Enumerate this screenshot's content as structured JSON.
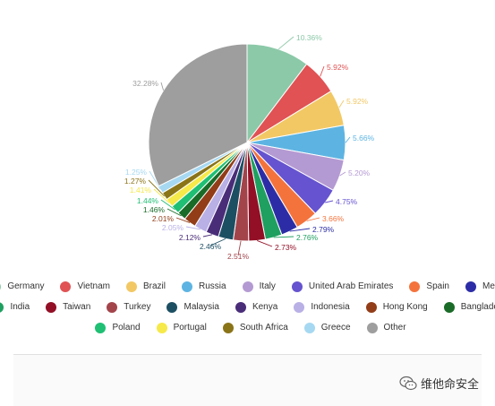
{
  "chart_data": {
    "type": "pie",
    "title": "",
    "slices": [
      {
        "label": "Germany",
        "value": 10.36,
        "color": "#8cc9a8",
        "label_text": "10.36%"
      },
      {
        "label": "Vietnam",
        "value": 5.92,
        "color": "#e05254",
        "label_text": "5.92%"
      },
      {
        "label": "Brazil",
        "value": 5.92,
        "color": "#f2c865",
        "label_text": "5.92%"
      },
      {
        "label": "Russia",
        "value": 5.66,
        "color": "#5db4e2",
        "label_text": "5.66%"
      },
      {
        "label": "Italy",
        "value": 5.2,
        "color": "#b49ad2",
        "label_text": "5.20%"
      },
      {
        "label": "United Arab Emirates",
        "value": 4.75,
        "color": "#6553cf",
        "label_text": "4.75%"
      },
      {
        "label": "Spain",
        "value": 3.66,
        "color": "#f4733d",
        "label_text": "3.66%"
      },
      {
        "label": "Mexico",
        "value": 2.79,
        "color": "#2c2da6",
        "label_text": "2.79%"
      },
      {
        "label": "India",
        "value": 2.76,
        "color": "#1fa060",
        "label_text": "2.76%"
      },
      {
        "label": "Taiwan",
        "value": 2.73,
        "color": "#920f25",
        "label_text": "2.73%"
      },
      {
        "label": "Turkey",
        "value": 2.51,
        "color": "#a3444b",
        "label_text": "2.51%"
      },
      {
        "label": "Malaysia",
        "value": 2.46,
        "color": "#1d4f63",
        "label_text": "2.46%"
      },
      {
        "label": "Kenya",
        "value": 2.12,
        "color": "#4a2d79",
        "label_text": "2.12%"
      },
      {
        "label": "Indonesia",
        "value": 2.05,
        "color": "#b9b0e6",
        "label_text": "2.05%"
      },
      {
        "label": "Hong Kong",
        "value": 2.01,
        "color": "#923d18",
        "label_text": "2.01%"
      },
      {
        "label": "Bangladesh",
        "value": 1.46,
        "color": "#1a6b27",
        "label_text": "1.46%"
      },
      {
        "label": "Poland",
        "value": 1.44,
        "color": "#1fbf74",
        "label_text": "1.44%"
      },
      {
        "label": "Portugal",
        "value": 1.41,
        "color": "#f6e94a",
        "label_text": "1.41%"
      },
      {
        "label": "South Africa",
        "value": 1.27,
        "color": "#8a7418",
        "label_text": "1.27%"
      },
      {
        "label": "Greece",
        "value": 1.25,
        "color": "#a6d8f2",
        "label_text": "1.25%"
      },
      {
        "label": "Other",
        "value": 32.28,
        "color": "#9e9e9e",
        "label_text": "32.28%"
      }
    ],
    "legend_position": "bottom"
  },
  "watermark": {
    "text": "维他命安全",
    "icon": "wechat-icon"
  }
}
